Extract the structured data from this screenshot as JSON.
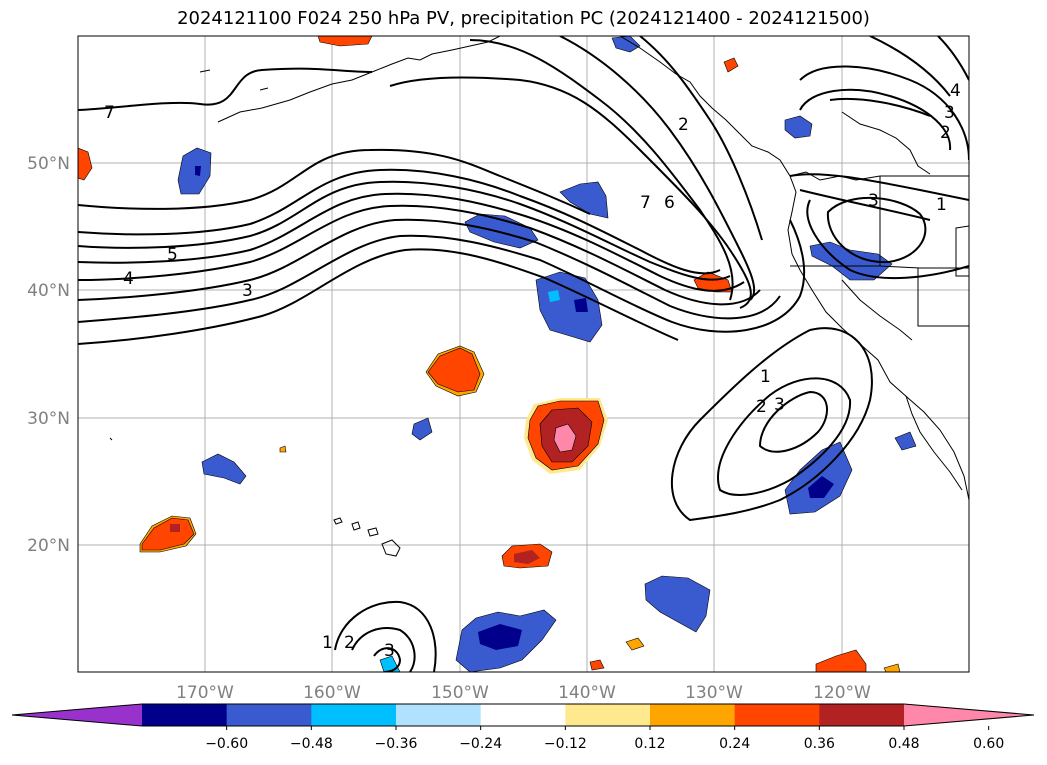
{
  "title": "2024121100 F024 250 hPa PV, precipitation PC (2024121400 - 2024121500)",
  "lon_ticks": [
    "170°W",
    "160°W",
    "150°W",
    "140°W",
    "130°W",
    "120°W"
  ],
  "lat_ticks": [
    "50°N",
    "40°N",
    "30°N",
    "20°N"
  ],
  "colorbar": {
    "ticks": [
      "−0.60",
      "−0.48",
      "−0.36",
      "−0.24",
      "−0.12",
      "0.12",
      "0.24",
      "0.36",
      "0.48",
      "0.60"
    ],
    "colors": [
      "#9932cc",
      "#00008b",
      "#3a5bd0",
      "#00bfff",
      "#b0e2ff",
      "#ffffff",
      "#ffe98e",
      "#ffa500",
      "#ff4500",
      "#b22222",
      "#ff88aa"
    ]
  },
  "contour_labels": [
    "7",
    "5",
    "4",
    "3",
    "7",
    "6",
    "2",
    "3",
    "2",
    "1",
    "3",
    "4",
    "1",
    "2",
    "3",
    "1",
    "2",
    "3"
  ],
  "chart_data": {
    "type": "map",
    "region": {
      "lon_range": [
        -180,
        -110
      ],
      "lat_range": [
        10,
        60
      ]
    },
    "fields": [
      "250 hPa PV (contours)",
      "precipitation PC (shaded)"
    ],
    "contour_levels": [
      1,
      2,
      3,
      4,
      5,
      6,
      7
    ],
    "shading_levels": [
      -0.6,
      -0.48,
      -0.36,
      -0.24,
      -0.12,
      0.12,
      0.24,
      0.36,
      0.48,
      0.6
    ]
  }
}
